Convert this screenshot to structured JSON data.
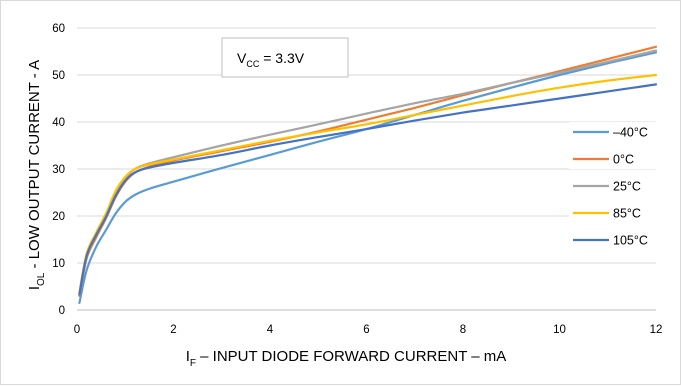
{
  "chart_data": {
    "type": "line",
    "title": "",
    "xlabel": {
      "main": "I",
      "sub": "F",
      "rest": " – INPUT DIODE FORWARD CURRENT – mA"
    },
    "ylabel": {
      "main": "I",
      "sub": "OL",
      "rest": "  - LOW OUTPUT CURRENT - A"
    },
    "xlim": [
      0,
      12
    ],
    "ylim": [
      0,
      60
    ],
    "xticks": [
      "0",
      "2",
      "4",
      "6",
      "8",
      "10",
      "12"
    ],
    "yticks": [
      "0",
      "10",
      "20",
      "30",
      "40",
      "50",
      "60"
    ],
    "grid": {
      "horizontal": true,
      "vertical": false
    },
    "legend": {
      "placement": "right"
    },
    "annotation": {
      "main": "V",
      "sub": "CC",
      "rest": " = 3.3V"
    },
    "series": [
      {
        "name": "–40°C",
        "color": "#5b9bd5",
        "x": [
          0.05,
          0.2,
          0.4,
          0.6,
          0.8,
          1.0,
          1.2,
          1.5,
          2.0,
          3.0,
          4.0,
          5.0,
          6.0,
          7.0,
          8.0,
          9.0,
          10.0,
          11.0,
          12.0
        ],
        "y": [
          1.5,
          8.5,
          13.5,
          17.0,
          20.5,
          23.0,
          24.5,
          25.8,
          27.3,
          30.2,
          33.0,
          35.8,
          38.5,
          41.5,
          44.5,
          47.3,
          50.0,
          52.5,
          54.8
        ]
      },
      {
        "name": "0°C",
        "color": "#ed7d31",
        "x": [
          0.05,
          0.2,
          0.4,
          0.6,
          0.8,
          1.0,
          1.2,
          1.5,
          2.0,
          3.0,
          4.0,
          5.0,
          6.0,
          7.0,
          8.0,
          9.0,
          10.0,
          11.0,
          12.0
        ],
        "y": [
          3.0,
          11.0,
          15.5,
          19.5,
          24.0,
          27.3,
          29.2,
          30.5,
          31.8,
          33.8,
          35.8,
          38.0,
          40.5,
          43.0,
          45.7,
          48.3,
          50.8,
          53.4,
          56.0
        ]
      },
      {
        "name": "25°C",
        "color": "#a5a5a5",
        "x": [
          0.05,
          0.2,
          0.4,
          0.6,
          0.8,
          1.0,
          1.2,
          1.5,
          2.0,
          3.0,
          4.0,
          5.0,
          6.0,
          7.0,
          8.0,
          9.0,
          10.0,
          11.0,
          12.0
        ],
        "y": [
          3.5,
          11.5,
          16.0,
          20.0,
          24.8,
          28.0,
          30.0,
          31.2,
          32.5,
          35.0,
          37.3,
          39.5,
          41.8,
          44.0,
          46.0,
          48.3,
          50.5,
          52.8,
          55.2
        ]
      },
      {
        "name": "85°C",
        "color": "#ffc000",
        "x": [
          0.05,
          0.2,
          0.4,
          0.6,
          0.8,
          1.0,
          1.2,
          1.5,
          2.0,
          3.0,
          4.0,
          5.0,
          6.0,
          7.0,
          8.0,
          9.0,
          10.0,
          11.0,
          12.0
        ],
        "y": [
          3.8,
          12.0,
          16.5,
          20.5,
          25.3,
          28.3,
          30.0,
          31.0,
          32.0,
          34.0,
          36.0,
          37.8,
          39.5,
          41.5,
          43.5,
          45.5,
          47.3,
          48.8,
          50.0
        ]
      },
      {
        "name": "105°C",
        "color": "#4472c4",
        "x": [
          0.05,
          0.2,
          0.4,
          0.6,
          0.8,
          1.0,
          1.2,
          1.5,
          2.0,
          3.0,
          4.0,
          5.0,
          6.0,
          7.0,
          8.0,
          9.0,
          10.0,
          11.0,
          12.0
        ],
        "y": [
          3.3,
          11.5,
          16.0,
          19.8,
          24.3,
          27.5,
          29.3,
          30.3,
          31.3,
          33.0,
          35.0,
          36.8,
          38.5,
          40.3,
          42.0,
          43.5,
          45.0,
          46.5,
          48.0
        ]
      }
    ]
  }
}
